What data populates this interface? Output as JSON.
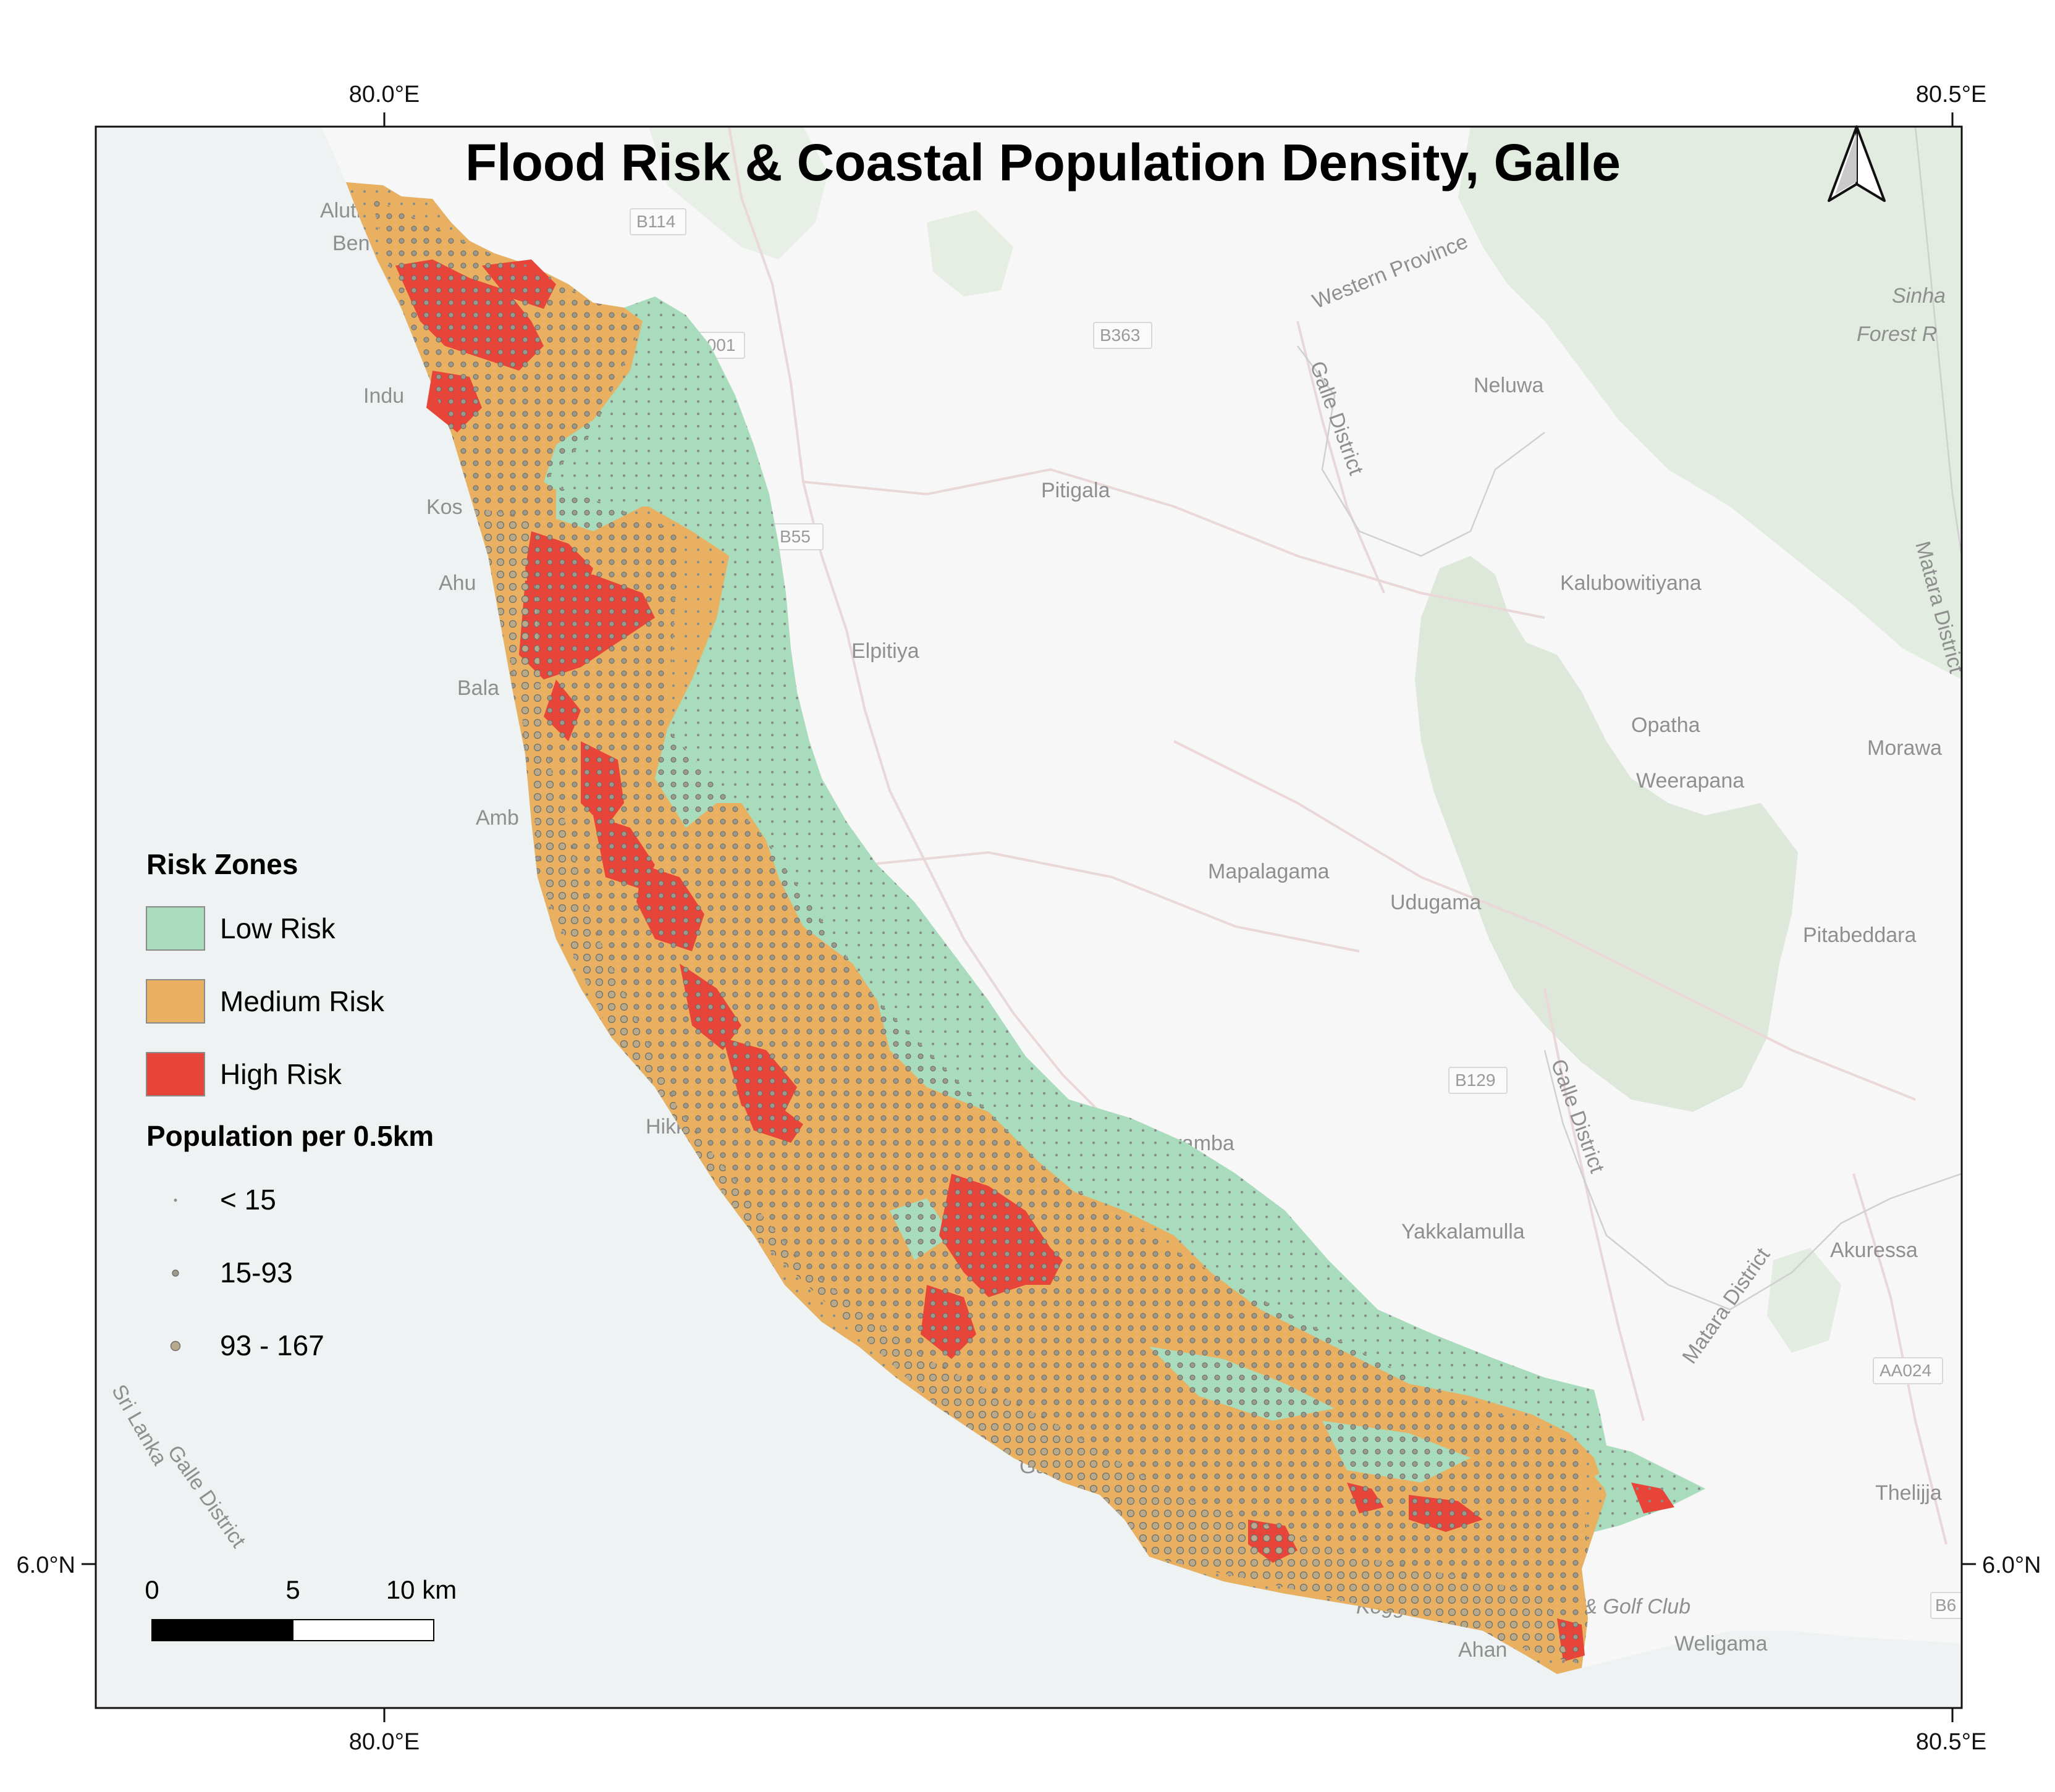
{
  "map": {
    "title": "Flood Risk & Coastal Population Density, Galle",
    "graticule": {
      "top": [
        "80.0°E",
        "80.5°E"
      ],
      "bottom": [
        "80.0°E",
        "80.5°E"
      ],
      "left": [
        "6.0°N"
      ],
      "right": [
        "6.0°N"
      ]
    },
    "places": [
      "Aluth",
      "Ben",
      "Indu",
      "Kos",
      "Ahu",
      "Bala",
      "Amb",
      "Hikk",
      "Galle",
      "Neluwa",
      "Pitigala",
      "Elpitiya",
      "Kalubowitiyana",
      "Opatha",
      "Weerapana",
      "Morawa",
      "Mapalagama",
      "Udugama",
      "Pitabeddara",
      "Wanduramba",
      "Yakkalamulla",
      "Akuressa",
      "Thelijja",
      "Weligama",
      "Ahan",
      "Sinha",
      "Forest R",
      "Koggala Air Force Base & Golf Club"
    ],
    "roads": [
      "B114",
      "E001",
      "B363",
      "B55",
      "B129",
      "AA024",
      "B6"
    ],
    "admin_labels": [
      "Western Province",
      "Galle District",
      "Galle District",
      "Matara District",
      "Matara District",
      "Galle District",
      "Sri Lanka"
    ],
    "north_arrow_icon": "north-arrow-icon"
  },
  "legend": {
    "risk_title": "Risk Zones",
    "risk_items": [
      {
        "label": "Low Risk",
        "color": "#a8dcbd"
      },
      {
        "label": "Medium Risk",
        "color": "#e8b060"
      },
      {
        "label": "High Risk",
        "color": "#e8453a"
      }
    ],
    "pop_title": "Population per 0.5km",
    "pop_items": [
      {
        "label": "< 15"
      },
      {
        "label": "15-93"
      },
      {
        "label": "93 - 167"
      }
    ]
  },
  "scalebar": {
    "labels": [
      "0",
      "5",
      "10 km"
    ]
  },
  "colors": {
    "sea": "#eef2f2",
    "land": "#f7f7f7",
    "forest": "#d9e6d6",
    "low": "#a8dcbd",
    "medium": "#e8b060",
    "high": "#e8453a"
  }
}
